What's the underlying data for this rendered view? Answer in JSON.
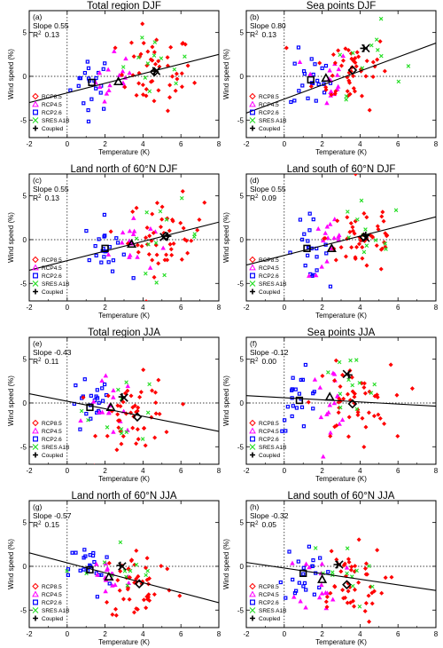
{
  "figure": {
    "xlabel": "Temperature (K)",
    "ylabel": "Wind speed (%)",
    "xticks": [
      "-2",
      "0",
      "2",
      "4",
      "6",
      "8"
    ],
    "yticks": [
      "5",
      "0",
      "-5"
    ],
    "colors": {
      "RCP8.5": "#ff0000",
      "RCP4.5": "#ff00ff",
      "RCP2.6": "#0000ff",
      "SRES A1B": "#22dd22",
      "Coupled": "#000000"
    }
  },
  "chart_data": [
    {
      "type": "scatter",
      "label": "(a)",
      "title": "Total region DJF",
      "slope_text": "Slope 0.55",
      "r2_text": "0.13",
      "xlim": [
        -2,
        8
      ],
      "ylim": [
        -7,
        7.5
      ],
      "fit": {
        "slope": 0.55,
        "intercept": -1.9
      },
      "means": {
        "RCP2.6": [
          1.3,
          -0.7
        ],
        "RCP4.5": [
          2.7,
          -0.6
        ],
        "RCP8.5": [
          4.6,
          0.5
        ],
        "SRES A1B": [
          4.7,
          0.6
        ],
        "Coupled": [
          4.6,
          0.6
        ]
      },
      "legend": [
        "RCP8.5",
        "RCP4.5",
        "RCP2.6",
        "SRES A1B",
        "Coupled"
      ]
    },
    {
      "type": "scatter",
      "label": "(b)",
      "title": "Sea points DJF",
      "slope_text": "Slope 0.80",
      "r2_text": "0.13",
      "xlim": [
        -2,
        8
      ],
      "ylim": [
        -7,
        7.5
      ],
      "fit": {
        "slope": 0.8,
        "intercept": -2.6
      },
      "means": {
        "RCP2.6": [
          1.4,
          -0.4
        ],
        "RCP4.5": [
          2.2,
          -0.2
        ],
        "RCP8.5": [
          3.6,
          0.7
        ],
        "SRES A1B": [
          4.3,
          3.2
        ],
        "Coupled": [
          4.2,
          3.2
        ]
      },
      "legend": [
        "RCP8.5",
        "RCP4.5",
        "RCP2.6",
        "SRES A1B",
        "Coupled"
      ]
    },
    {
      "type": "scatter",
      "label": "(c)",
      "title": "Land north of 60°N DJF",
      "slope_text": "Slope 0.55",
      "r2_text": "0.13",
      "xlim": [
        -2,
        8
      ],
      "ylim": [
        -7,
        7.5
      ],
      "fit": {
        "slope": 0.55,
        "intercept": -2.4
      },
      "means": {
        "RCP2.6": [
          2.0,
          -1.0
        ],
        "RCP4.5": [
          3.4,
          -0.5
        ],
        "RCP8.5": [
          5.2,
          0.4
        ],
        "SRES A1B": [
          5.1,
          0.3
        ],
        "Coupled": [
          5.3,
          0.4
        ]
      },
      "legend": [
        "RCP8.5",
        "RCP4.5",
        "RCP2.6",
        "SRES A1B",
        "Coupled"
      ]
    },
    {
      "type": "scatter",
      "label": "(d)",
      "title": "Land south of 60°N DJF",
      "slope_text": "Slope 0.55",
      "r2_text": "0.09",
      "xlim": [
        -2,
        8
      ],
      "ylim": [
        -7,
        7.5
      ],
      "fit": {
        "slope": 0.55,
        "intercept": -1.8
      },
      "means": {
        "RCP2.6": [
          1.2,
          -1.0
        ],
        "RCP4.5": [
          2.5,
          -1.0
        ],
        "RCP8.5": [
          4.2,
          0.3
        ],
        "SRES A1B": [
          4.3,
          0.2
        ],
        "Coupled": [
          4.3,
          0.5
        ]
      },
      "legend": [
        "RCP8.5",
        "RCP4.5",
        "RCP2.6",
        "SRES A1B",
        "Coupled"
      ]
    },
    {
      "type": "scatter",
      "label": "(e)",
      "title": "Total region JJA",
      "slope_text": "Slope -0.43",
      "r2_text": "0.11",
      "xlim": [
        -2,
        8
      ],
      "ylim": [
        -7,
        7.5
      ],
      "fit": {
        "slope": -0.43,
        "intercept": 0.2
      },
      "means": {
        "RCP2.6": [
          1.2,
          -0.5
        ],
        "RCP4.5": [
          2.3,
          -0.5
        ],
        "RCP8.5": [
          3.7,
          -1.6
        ],
        "SRES A1B": [
          3.0,
          0.6
        ],
        "Coupled": [
          2.9,
          0.7
        ]
      },
      "legend": [
        "RCP8.5",
        "RCP4.5",
        "RCP2.6",
        "SRES A1B",
        "Coupled"
      ]
    },
    {
      "type": "scatter",
      "label": "(f)",
      "title": "Sea points JJA",
      "slope_text": "Slope -0.12",
      "r2_text": "0.00",
      "xlim": [
        -2,
        8
      ],
      "ylim": [
        -7,
        7.5
      ],
      "fit": {
        "slope": -0.12,
        "intercept": 0.6
      },
      "means": {
        "RCP2.6": [
          0.8,
          0.3
        ],
        "RCP4.5": [
          2.4,
          0.7
        ],
        "RCP8.5": [
          3.6,
          -0.1
        ],
        "SRES A1B": [
          3.3,
          3.3
        ],
        "Coupled": [
          3.4,
          3.2
        ]
      },
      "legend": [
        "RCP8.5",
        "RCP4.5",
        "RCP2.6",
        "SRES A1B",
        "Coupled"
      ]
    },
    {
      "type": "scatter",
      "label": "(g)",
      "title": "Land north of 60°N JJA",
      "slope_text": "Slope -0.57",
      "r2_text": "0.15",
      "xlim": [
        -2,
        8
      ],
      "ylim": [
        -7,
        7.5
      ],
      "fit": {
        "slope": -0.57,
        "intercept": 0.4
      },
      "means": {
        "RCP2.6": [
          1.2,
          -0.4
        ],
        "RCP4.5": [
          2.2,
          -1.2
        ],
        "RCP8.5": [
          3.8,
          -2.0
        ],
        "SRES A1B": [
          2.9,
          0.0
        ],
        "Coupled": [
          2.8,
          0.1
        ]
      },
      "legend": [
        "RCP8.5",
        "RCP4.5",
        "RCP2.6",
        "SRES A1B",
        "Coupled"
      ]
    },
    {
      "type": "scatter",
      "label": "(h)",
      "title": "Land south of 60°N JJA",
      "slope_text": "Slope -0.32",
      "r2_text": "0.05",
      "xlim": [
        -2,
        8
      ],
      "ylim": [
        -7,
        7.5
      ],
      "fit": {
        "slope": -0.32,
        "intercept": -0.2
      },
      "means": {
        "RCP2.6": [
          1.0,
          -0.8
        ],
        "RCP4.5": [
          2.0,
          -1.5
        ],
        "RCP8.5": [
          3.3,
          -2.1
        ],
        "SRES A1B": [
          2.9,
          0.2
        ],
        "Coupled": [
          2.8,
          0.2
        ]
      },
      "legend": [
        "RCP8.5",
        "RCP4.5",
        "RCP2.6",
        "SRES A1B",
        "Coupled"
      ]
    }
  ]
}
